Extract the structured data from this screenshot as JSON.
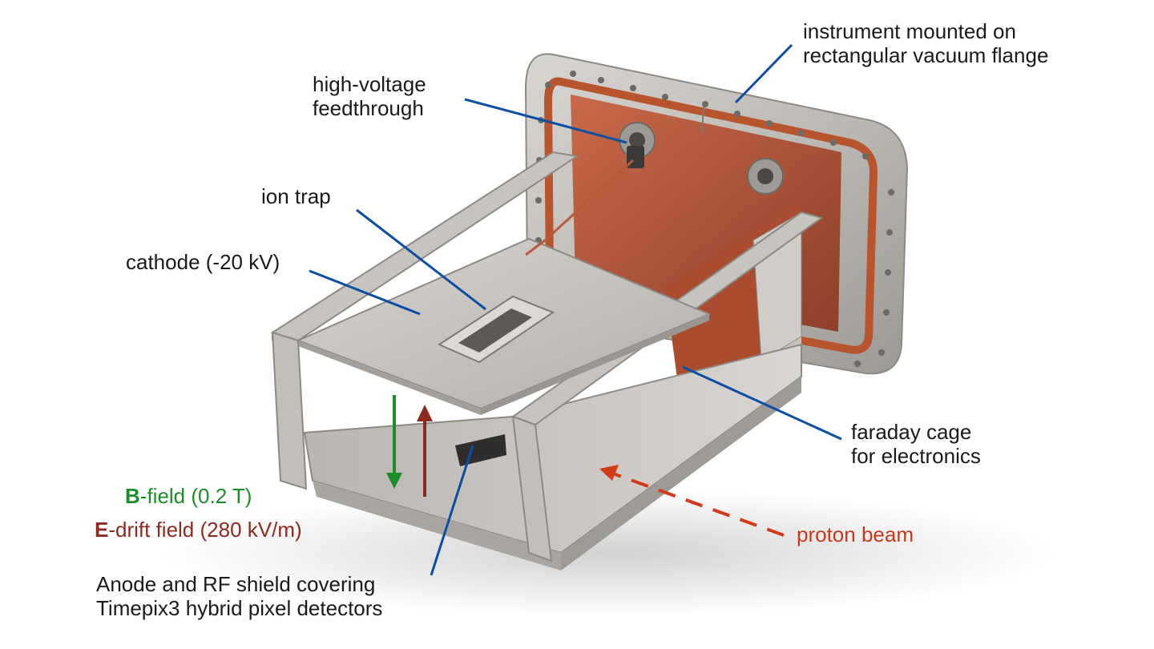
{
  "labels": {
    "flange": [
      "instrument mounted on",
      "rectangular vacuum flange"
    ],
    "feedthrough": [
      "high-voltage",
      "feedthrough"
    ],
    "ion_trap": "ion trap",
    "cathode": "cathode (-20 kV)",
    "faraday": [
      "faraday cage",
      "for electronics"
    ],
    "bfield": {
      "letter": "B",
      "rest": "-field (0.2 T)"
    },
    "efield": {
      "letter": "E",
      "rest": "-drift field (280 kV/m)"
    },
    "proton_beam": "proton beam",
    "anode": [
      "Anode and RF shield covering",
      "Timepix3 hybrid pixel detectors"
    ]
  },
  "colors": {
    "leader": "#0b4ea2",
    "bfield": "#1e8c2a",
    "efield": "#8c2a22",
    "beam": "#d23a1a",
    "steel": "#c9c6c2",
    "copper": "#b85a3c"
  }
}
